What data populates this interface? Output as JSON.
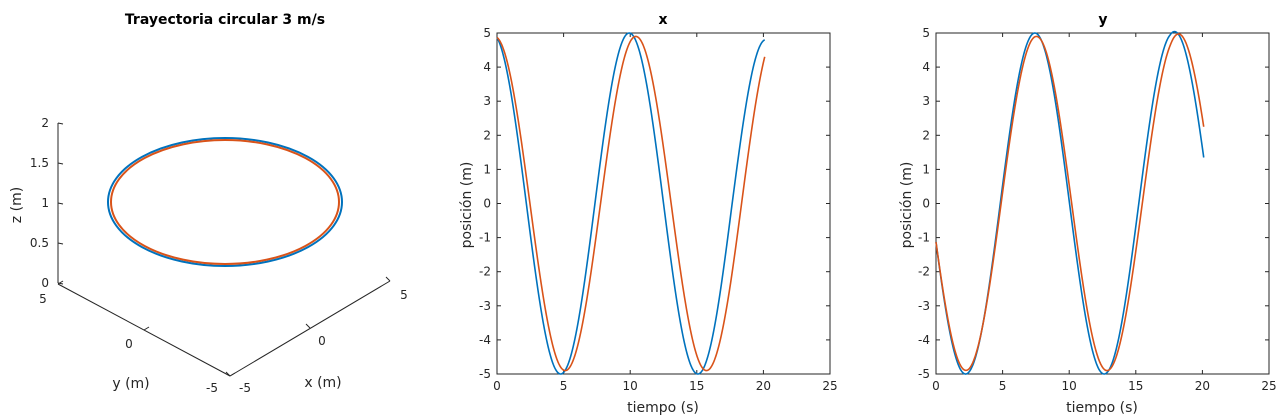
{
  "colors": {
    "series1": "#0072BD",
    "series2": "#D95319",
    "axis": "#262626"
  },
  "chart_data": [
    {
      "type": "line3d",
      "title": "Trayectoria circular 3 m/s",
      "xlabel": "x (m)",
      "ylabel": "y (m)",
      "zlabel": "z (m)",
      "xlim": [
        -5,
        5
      ],
      "ylim": [
        -5,
        5
      ],
      "zlim": [
        0,
        2
      ],
      "x_ticks": [
        "-5",
        "0",
        "5"
      ],
      "y_ticks": [
        "5",
        "0",
        "-5"
      ],
      "z_ticks": [
        "0",
        "0.5",
        "1",
        "1.5",
        "2"
      ],
      "grid": false,
      "series": [
        {
          "shape": "circle",
          "center": [
            0,
            0
          ],
          "radius": 5.0,
          "z": 1
        },
        {
          "shape": "circle",
          "center": [
            0,
            0
          ],
          "radius": 4.88,
          "z": 1
        }
      ]
    },
    {
      "type": "line",
      "title": "x",
      "xlabel": "tiempo (s)",
      "ylabel": "posición (m)",
      "xlim": [
        0,
        25
      ],
      "ylim": [
        -5,
        5
      ],
      "x_ticks": [
        "0",
        "5",
        "10",
        "15",
        "20",
        "25"
      ],
      "y_ticks": [
        "-5",
        "-4",
        "-3",
        "-2",
        "-1",
        "0",
        "1",
        "2",
        "3",
        "4",
        "5"
      ],
      "grid": false,
      "series": [
        {
          "t_range": [
            0,
            20.1
          ],
          "amplitude": 5,
          "period": 10.3,
          "phase_deg": 13,
          "start": 4.87,
          "end": 4.8
        },
        {
          "t_range": [
            0,
            20.1
          ],
          "amplitude": 4.9,
          "period": 10.6,
          "phase_deg": 6,
          "start": 4.87,
          "end": 4.3
        }
      ]
    },
    {
      "type": "line",
      "title": "y",
      "xlabel": "tiempo (s)",
      "ylabel": "posición (m)",
      "xlim": [
        0,
        25
      ],
      "ylim": [
        -5,
        5
      ],
      "x_ticks": [
        "0",
        "5",
        "10",
        "15",
        "20",
        "25"
      ],
      "y_ticks": [
        "-5",
        "-4",
        "-3",
        "-2",
        "-1",
        "0",
        "1",
        "2",
        "3",
        "4",
        "5"
      ],
      "grid": false,
      "series": [
        {
          "t_range": [
            0,
            20.1
          ],
          "amplitude": 5,
          "period": 10.4,
          "phase_deg": 103,
          "start": -1.13,
          "end": 1.35
        },
        {
          "t_range": [
            0,
            20.1
          ],
          "amplitude": 4.9,
          "period": 10.6,
          "phase_deg": 104,
          "start": -1.13,
          "end": 2.25
        }
      ]
    }
  ]
}
